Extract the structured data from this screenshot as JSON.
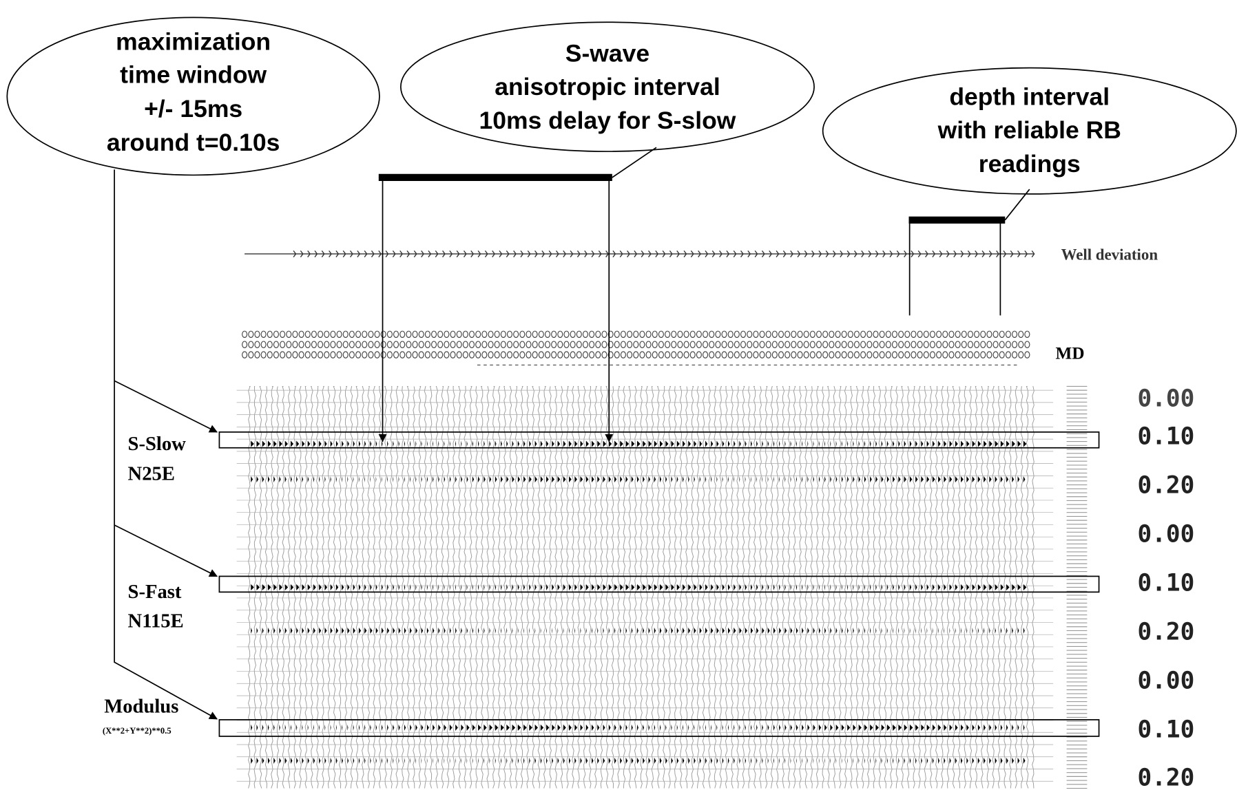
{
  "callouts": [
    {
      "lines": [
        "maximization",
        "time window",
        "+/- 15ms",
        "around t=0.10s"
      ]
    },
    {
      "lines": [
        "S-wave",
        "anisotropic interval",
        "10ms delay for S-slow"
      ]
    },
    {
      "lines": [
        "depth interval",
        "with reliable RB",
        "readings"
      ]
    }
  ],
  "track_labels": {
    "well_deviation": "Well deviation",
    "md": "MD"
  },
  "panels": [
    {
      "name": "S-Slow",
      "azimuth": "N25E",
      "times": [
        "0.00",
        "0.10",
        "0.20"
      ]
    },
    {
      "name": "S-Fast",
      "azimuth": "N115E",
      "times": [
        "0.00",
        "0.10",
        "0.20"
      ]
    },
    {
      "name": "Modulus",
      "formula": "(X**2+Y**2)**0.5",
      "times": [
        "0.00",
        "0.10",
        "0.20"
      ]
    }
  ]
}
